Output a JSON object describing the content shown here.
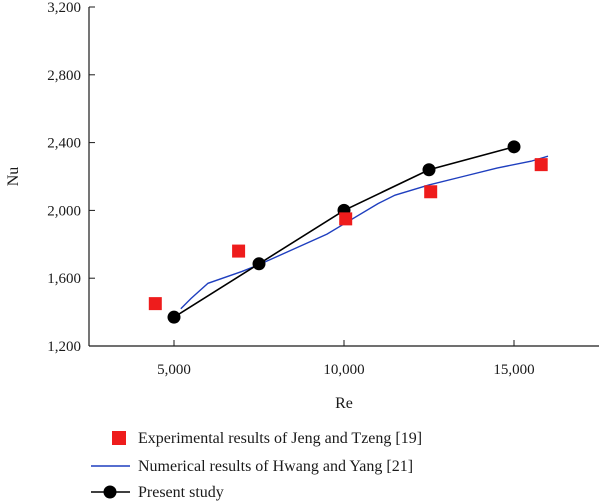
{
  "chart_data": {
    "type": "scatter",
    "title": "",
    "xlabel": "Re",
    "ylabel": "Nu",
    "xlim": [
      2500,
      17500
    ],
    "ylim": [
      1200,
      3200
    ],
    "x_ticks": [
      5000,
      10000,
      15000
    ],
    "x_tick_labels": [
      "5,000",
      "10,000",
      "15,000"
    ],
    "y_ticks": [
      1200,
      1600,
      2000,
      2400,
      2800,
      3200
    ],
    "y_tick_labels": [
      "1,200",
      "1,600",
      "2,000",
      "2,400",
      "2,800",
      "3,200"
    ],
    "grid": false,
    "legend_position": "bottom",
    "series": [
      {
        "name": "Experimental results of Jeng and Tzeng [19]",
        "style": "markers-square",
        "color": "#ee1c1c",
        "x": [
          4450,
          6900,
          10050,
          12550,
          15800
        ],
        "y": [
          1450,
          1760,
          1950,
          2110,
          2270
        ]
      },
      {
        "name": "Numerical results of Hwang and Yang [21]",
        "style": "line",
        "color": "#1f3fbf",
        "x": [
          5200,
          5500,
          6000,
          7000,
          7500,
          8500,
          9500,
          10000,
          11000,
          11500,
          12500,
          13500,
          14500,
          15500,
          16000
        ],
        "y": [
          1420,
          1480,
          1570,
          1640,
          1680,
          1770,
          1860,
          1920,
          2040,
          2090,
          2150,
          2200,
          2250,
          2290,
          2320
        ]
      },
      {
        "name": "Present study",
        "style": "line-markers-circle",
        "color": "#000000",
        "x": [
          5000,
          7500,
          10000,
          12500,
          15000
        ],
        "y": [
          1370,
          1685,
          2000,
          2240,
          2375
        ]
      }
    ]
  }
}
